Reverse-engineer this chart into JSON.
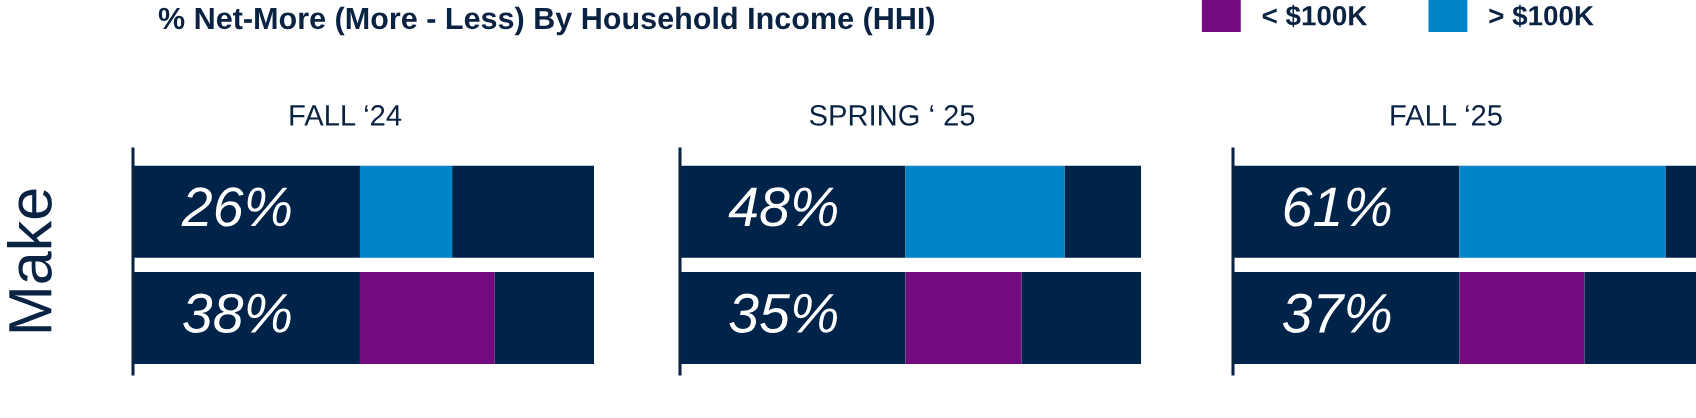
{
  "chart_data": [
    {
      "type": "bar",
      "orientation": "horizontal",
      "stacked": true,
      "title": "FALL ‘24",
      "ylabel": "Make",
      "annotations": [
        "% Net-More (More - Less) By Household Income (HHI)"
      ],
      "categories": [
        null,
        null
      ],
      "xlim": [
        0,
        130
      ],
      "legend": "top right",
      "series": [
        {
          "color": "#002349",
          "values": [
            64,
            64
          ]
        },
        {
          "name": "< $100K",
          "color": "#730b7e",
          "values": [
            null,
            38
          ],
          "value_labels": [
            null,
            "38%"
          ]
        },
        {
          "name": "> $100K",
          "color": "#0085ca",
          "values": [
            26,
            null
          ],
          "value_labels": [
            "26%",
            null
          ]
        },
        {
          "color": "#002349",
          "values": [
            40,
            28
          ]
        }
      ]
    },
    {
      "type": "bar",
      "orientation": "horizontal",
      "stacked": true,
      "title": "SPRING ‘ 25",
      "categories": [
        null,
        null
      ],
      "xlim": [
        0,
        139
      ],
      "series": [
        {
          "color": "#002349",
          "values": [
            68,
            68
          ]
        },
        {
          "color": "#730b7e",
          "values": [
            null,
            35
          ],
          "value_labels": [
            null,
            "35%"
          ]
        },
        {
          "color": "#0085ca",
          "values": [
            48,
            null
          ],
          "value_labels": [
            "48%",
            null
          ]
        },
        {
          "color": "#002349",
          "values": [
            23,
            36
          ]
        }
      ]
    },
    {
      "type": "bar",
      "orientation": "horizontal",
      "stacked": true,
      "title": "FALL ‘25",
      "categories": [
        null,
        null
      ],
      "xlim": [
        0,
        137
      ],
      "series": [
        {
          "color": "#002349",
          "values": [
            67,
            67
          ]
        },
        {
          "color": "#730b7e",
          "values": [
            null,
            37
          ],
          "value_labels": [
            null,
            "37%"
          ]
        },
        {
          "color": "#0085ca",
          "values": [
            61,
            null
          ],
          "value_labels": [
            "61%",
            null
          ]
        },
        {
          "color": "#002349",
          "values": [
            9,
            33
          ]
        }
      ]
    }
  ]
}
